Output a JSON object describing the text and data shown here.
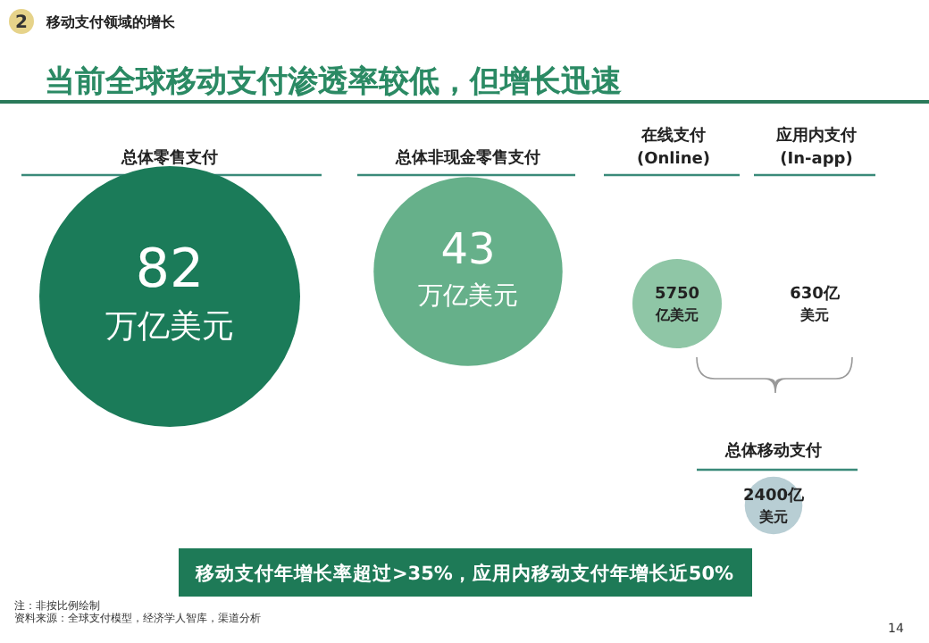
{
  "chart_data": {
    "type": "other",
    "title": "当前全球移动支付渗透率较低，但增长迅速",
    "subtitle": "移动支付领域的增长",
    "categories": [
      "总体零售支付",
      "总体非现金零售支付",
      "在线支付\n(Online)",
      "应用内支付\n(In-app)",
      "总体移动支付"
    ],
    "values": [
      82,
      43,
      5750,
      630,
      2400
    ],
    "value_labels": [
      "82万亿美元",
      "43万亿美元",
      "5750亿美元",
      "630亿美元",
      "2400亿美元"
    ],
    "colors": [
      "#1b7b59",
      "#66b08a",
      "#8fc6a6",
      null,
      "#b8ced4"
    ],
    "annotations": [
      "2",
      "移动支付年增长率超过>35%，应用内移动支付年增长近50%",
      "注：非按比例绘制",
      "资料来源：全球支付模型，经济学人智库，渠道分析",
      "14"
    ]
  }
}
